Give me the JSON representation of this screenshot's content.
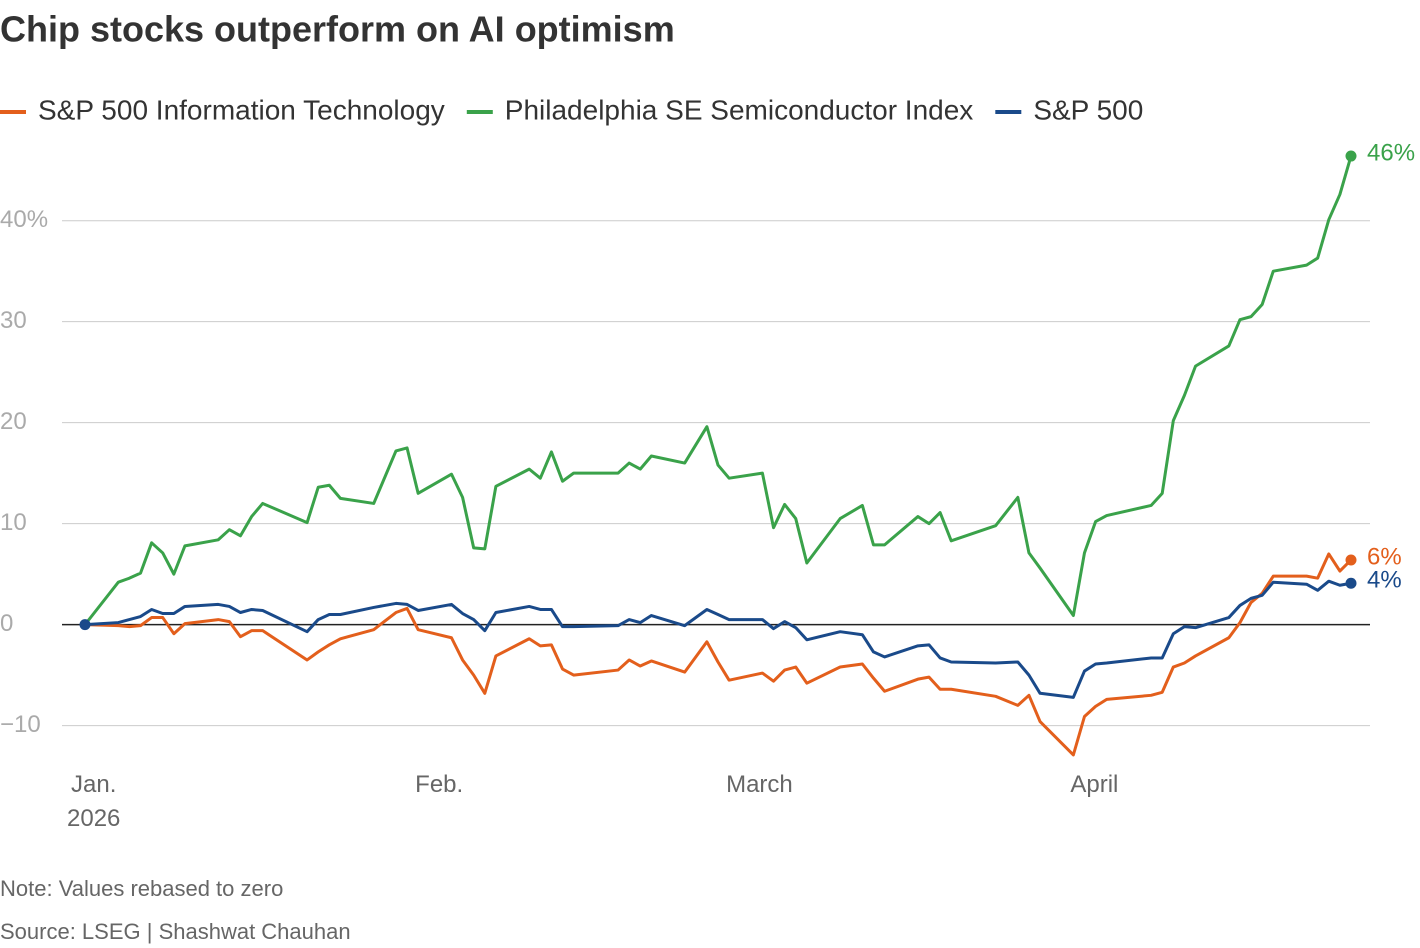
{
  "chart_data": {
    "type": "line",
    "title": "Chip stocks outperform on AI optimism",
    "notes": [
      "Note: Values rebased to zero",
      "Source: LSEG | Shashwat Chauhan"
    ],
    "x": [
      2,
      5,
      6,
      7,
      8,
      9,
      10,
      11,
      14,
      15,
      16,
      17,
      18,
      22,
      23,
      24,
      25,
      28,
      30,
      31,
      32,
      35,
      36,
      37,
      38,
      39,
      42,
      43,
      44,
      45,
      46,
      50,
      51,
      52,
      53,
      56,
      58,
      59,
      60,
      63,
      64,
      65,
      66,
      67,
      70,
      72,
      73,
      74,
      77,
      78,
      79,
      80,
      84,
      86,
      87,
      88,
      91,
      92,
      93,
      94,
      98,
      99,
      100,
      101,
      102,
      105,
      106,
      107,
      108,
      109,
      112,
      113,
      114,
      115,
      116
    ],
    "xlim": [
      2,
      116
    ],
    "xticks": [
      {
        "value": 2,
        "label": "Jan.\n2026"
      },
      {
        "value": 32,
        "label": "Feb."
      },
      {
        "value": 60,
        "label": "March"
      },
      {
        "value": 91,
        "label": "April"
      }
    ],
    "ylim": [
      -14,
      47
    ],
    "yticks": [
      {
        "value": -10,
        "label": "−10"
      },
      0,
      10,
      20,
      30,
      {
        "value": 40,
        "label": "40%"
      }
    ],
    "grid": true,
    "series": [
      {
        "name": "S&P 500 Information Technology",
        "color": "#e35f1c",
        "values": [
          0,
          -0.1,
          -0.2,
          -0.1,
          0.7,
          0.7,
          -0.9,
          0.1,
          0.5,
          0.3,
          -1.2,
          -0.6,
          -0.6,
          -3.5,
          -2.7,
          -2.0,
          -1.4,
          -0.5,
          1.2,
          1.6,
          -0.5,
          -1.3,
          -3.5,
          -5.0,
          -6.8,
          -3.1,
          -1.4,
          -2.1,
          -2.0,
          -4.4,
          -5.0,
          -4.5,
          -3.5,
          -4.1,
          -3.6,
          -4.7,
          -1.7,
          -3.7,
          -5.5,
          -4.8,
          -5.6,
          -4.5,
          -4.2,
          -5.8,
          -4.2,
          -3.9,
          -5.3,
          -6.6,
          -5.4,
          -5.2,
          -6.4,
          -6.4,
          -7.1,
          -8.0,
          -7.0,
          -9.6,
          -12.9,
          -9.1,
          -8.1,
          -7.4,
          -7.0,
          -6.7,
          -4.2,
          -3.8,
          -3.1,
          -1.3,
          0.2,
          2.2,
          3.1,
          4.8,
          4.8,
          4.6,
          7.0,
          5.3,
          6.4
        ],
        "value_labels": [
          null,
          null,
          null,
          null,
          null,
          null,
          null,
          null,
          null,
          null,
          null,
          null,
          null,
          null,
          null,
          null,
          null,
          null,
          null,
          null,
          null,
          null,
          null,
          null,
          null,
          null,
          null,
          null,
          null,
          null,
          null,
          null,
          null,
          null,
          null,
          null,
          null,
          null,
          null,
          null,
          null,
          null,
          null,
          null,
          null,
          null,
          null,
          null,
          null,
          null,
          null,
          null,
          null,
          null,
          null,
          null,
          null,
          null,
          null,
          null,
          null,
          null,
          null,
          null,
          null,
          null,
          null,
          null,
          null,
          null,
          null,
          null,
          null,
          null,
          "6%"
        ]
      },
      {
        "name": "Philadelphia SE Semiconductor Index",
        "color": "#3aa24a",
        "values": [
          0,
          4.2,
          4.6,
          5.1,
          8.1,
          7.1,
          5.0,
          7.8,
          8.4,
          9.4,
          8.8,
          10.7,
          12.0,
          10.1,
          13.6,
          13.8,
          12.5,
          12.0,
          17.2,
          17.5,
          13.0,
          14.9,
          12.6,
          7.6,
          7.5,
          13.7,
          15.4,
          14.5,
          17.1,
          14.2,
          15.0,
          15.0,
          16.0,
          15.4,
          16.7,
          16.0,
          19.6,
          15.8,
          14.5,
          15.0,
          9.6,
          11.9,
          10.5,
          6.1,
          10.5,
          11.8,
          7.9,
          7.9,
          10.7,
          10.0,
          11.1,
          8.3,
          9.8,
          12.6,
          7.1,
          5.6,
          0.9,
          7.1,
          10.2,
          10.8,
          11.8,
          13.0,
          20.2,
          22.7,
          25.6,
          27.6,
          30.2,
          30.5,
          31.7,
          35.0,
          35.6,
          36.3,
          40.1,
          42.6,
          46.4
        ],
        "value_labels": [
          null,
          null,
          null,
          null,
          null,
          null,
          null,
          null,
          null,
          null,
          null,
          null,
          null,
          null,
          null,
          null,
          null,
          null,
          null,
          null,
          null,
          null,
          null,
          null,
          null,
          null,
          null,
          null,
          null,
          null,
          null,
          null,
          null,
          null,
          null,
          null,
          null,
          null,
          null,
          null,
          null,
          null,
          null,
          null,
          null,
          null,
          null,
          null,
          null,
          null,
          null,
          null,
          null,
          null,
          null,
          null,
          null,
          null,
          null,
          null,
          null,
          null,
          null,
          null,
          null,
          null,
          null,
          null,
          null,
          null,
          null,
          null,
          null,
          null,
          "46%"
        ]
      },
      {
        "name": "S&P 500",
        "color": "#1a4a8a",
        "values": [
          0,
          0.2,
          0.5,
          0.8,
          1.5,
          1.1,
          1.1,
          1.8,
          2.0,
          1.8,
          1.2,
          1.5,
          1.4,
          -0.7,
          0.5,
          1.0,
          1.0,
          1.7,
          2.1,
          2.0,
          1.4,
          2.0,
          1.1,
          0.5,
          -0.6,
          1.2,
          1.8,
          1.5,
          1.5,
          -0.2,
          -0.2,
          -0.1,
          0.5,
          0.2,
          0.9,
          -0.1,
          1.5,
          1.0,
          0.5,
          0.5,
          -0.4,
          0.3,
          -0.3,
          -1.5,
          -0.7,
          -1.0,
          -2.7,
          -3.2,
          -2.1,
          -2.0,
          -3.3,
          -3.7,
          -3.8,
          -3.7,
          -5.0,
          -6.8,
          -7.2,
          -4.6,
          -3.9,
          -3.8,
          -3.3,
          -3.3,
          -0.9,
          -0.2,
          -0.3,
          0.7,
          1.9,
          2.6,
          2.9,
          4.2,
          4.0,
          3.4,
          4.3,
          3.9,
          4.1
        ],
        "value_labels": [
          null,
          null,
          null,
          null,
          null,
          null,
          null,
          null,
          null,
          null,
          null,
          null,
          null,
          null,
          null,
          null,
          null,
          null,
          null,
          null,
          null,
          null,
          null,
          null,
          null,
          null,
          null,
          null,
          null,
          null,
          null,
          null,
          null,
          null,
          null,
          null,
          null,
          null,
          null,
          null,
          null,
          null,
          null,
          null,
          null,
          null,
          null,
          null,
          null,
          null,
          null,
          null,
          null,
          null,
          null,
          null,
          null,
          null,
          null,
          null,
          null,
          null,
          null,
          null,
          null,
          null,
          null,
          null,
          null,
          null,
          null,
          null,
          null,
          null,
          "4%"
        ]
      }
    ]
  }
}
